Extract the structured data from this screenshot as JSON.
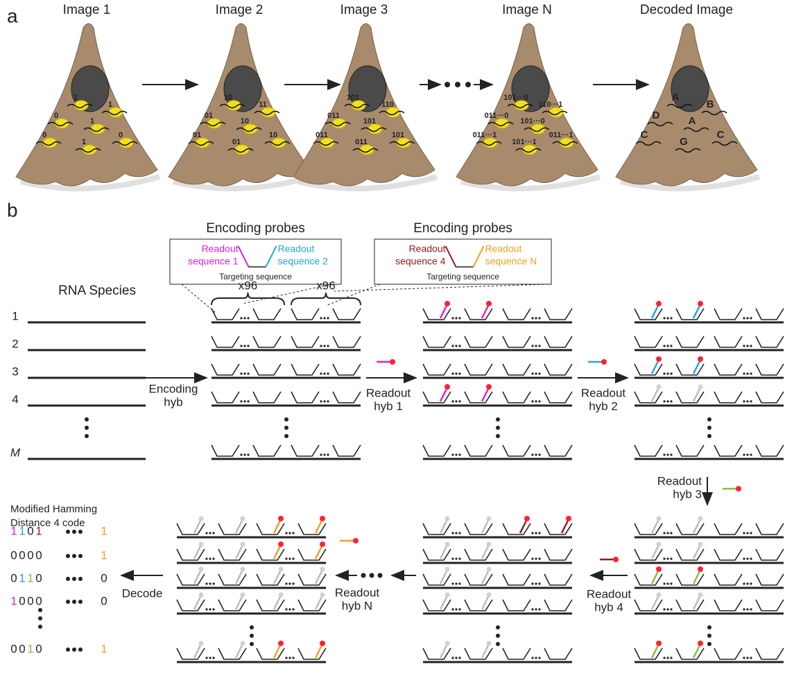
{
  "panel_a": {
    "label": "a",
    "images": [
      {
        "title": "Image 1",
        "spots": [
          "1",
          "1",
          "0",
          "1",
          "0",
          "1",
          "0"
        ]
      },
      {
        "title": "Image 2",
        "spots": [
          "10",
          "11",
          "01",
          "10",
          "01",
          "01",
          "10"
        ]
      },
      {
        "title": "Image 3",
        "spots": [
          "101",
          "110",
          "011",
          "101",
          "011",
          "011",
          "101"
        ]
      },
      {
        "title": "Image N",
        "spots": [
          "101···0",
          "110···1",
          "011···0",
          "101···0",
          "011···1",
          "101···1",
          "011···1"
        ]
      },
      {
        "title": "Decoded Image",
        "spots": [
          "A",
          "B",
          "D",
          "A",
          "C",
          "G",
          "C"
        ]
      }
    ]
  },
  "panel_b": {
    "label": "b",
    "probe_boxes": [
      {
        "title": "Encoding probes",
        "left": [
          "Readout",
          "sequence 1"
        ],
        "left_color": "#e020d0",
        "right": [
          "Readout",
          "sequence 2"
        ],
        "right_color": "#20a8d8",
        "middle": "Targeting sequence"
      },
      {
        "title": "Encoding probes",
        "left": [
          "Readout",
          "sequence 4"
        ],
        "left_color": "#8b2020",
        "right": [
          "Readout",
          "sequence N"
        ],
        "right_color": "#f0a020",
        "middle": "Targeting sequence"
      }
    ],
    "copies": [
      "x96",
      "x96"
    ],
    "rna_species": {
      "title": "RNA Species",
      "rows": [
        "1",
        "2",
        "3",
        "4",
        "M"
      ]
    },
    "steps": [
      [
        "Encoding",
        "hyb"
      ],
      [
        "Readout",
        "hyb 1"
      ],
      [
        "Readout",
        "hyb 2"
      ],
      [
        "Readout",
        "hyb 3"
      ],
      [
        "Readout",
        "hyb 4"
      ],
      [
        "Readout",
        "hyb N"
      ],
      [
        "Decode"
      ]
    ],
    "code": {
      "title": [
        "Modified Hamming",
        "Distance 4 code"
      ],
      "rows": [
        {
          "digits": [
            {
              "d": "1",
              "color": "#e020d0"
            },
            {
              "d": "1",
              "color": "#20a8d8"
            },
            {
              "d": "0",
              "color": "#222222"
            },
            {
              "d": "1",
              "color": "#8b2020"
            }
          ],
          "last": {
            "d": "1",
            "color": "#f0a020"
          }
        },
        {
          "digits": [
            {
              "d": "0",
              "color": "#222222"
            },
            {
              "d": "0",
              "color": "#222222"
            },
            {
              "d": "0",
              "color": "#222222"
            },
            {
              "d": "0",
              "color": "#222222"
            }
          ],
          "last": {
            "d": "1",
            "color": "#f0a020"
          }
        },
        {
          "digits": [
            {
              "d": "0",
              "color": "#222222"
            },
            {
              "d": "1",
              "color": "#20a8d8"
            },
            {
              "d": "1",
              "color": "#80c040"
            },
            {
              "d": "0",
              "color": "#222222"
            }
          ],
          "last": {
            "d": "0",
            "color": "#222222"
          }
        },
        {
          "digits": [
            {
              "d": "1",
              "color": "#e020d0"
            },
            {
              "d": "0",
              "color": "#222222"
            },
            {
              "d": "0",
              "color": "#222222"
            },
            {
              "d": "0",
              "color": "#222222"
            }
          ],
          "last": {
            "d": "0",
            "color": "#222222"
          }
        },
        {
          "digits": [
            {
              "d": "0",
              "color": "#222222"
            },
            {
              "d": "0",
              "color": "#222222"
            },
            {
              "d": "1",
              "color": "#80c040"
            },
            {
              "d": "0",
              "color": "#222222"
            }
          ],
          "last": {
            "d": "1",
            "color": "#f0a020"
          }
        }
      ]
    }
  }
}
